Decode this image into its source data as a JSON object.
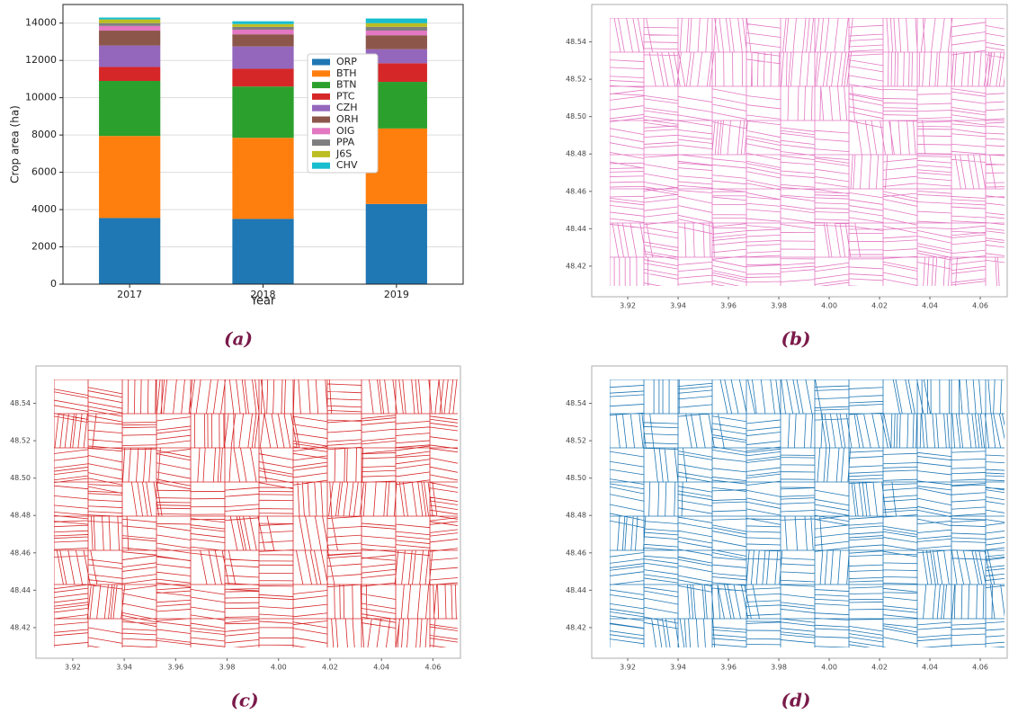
{
  "chart_data": {
    "type": "bar",
    "stacked": true,
    "caption": "(a)",
    "ylabel": "Crop area (ha)",
    "xlabel": "Year",
    "categories": [
      "2017",
      "2018",
      "2019"
    ],
    "series": [
      {
        "name": "ORP",
        "color": "#1f77b4",
        "values": [
          3550,
          3500,
          4300
        ]
      },
      {
        "name": "BTH",
        "color": "#ff7f0e",
        "values": [
          4400,
          4350,
          4050
        ]
      },
      {
        "name": "BTN",
        "color": "#2ca02c",
        "values": [
          2950,
          2750,
          2500
        ]
      },
      {
        "name": "PTC",
        "color": "#d62728",
        "values": [
          750,
          950,
          1000
        ]
      },
      {
        "name": "CZH",
        "color": "#9467bd",
        "values": [
          1150,
          1200,
          750
        ]
      },
      {
        "name": "ORH",
        "color": "#8c564b",
        "values": [
          800,
          650,
          750
        ]
      },
      {
        "name": "OIG",
        "color": "#e377c2",
        "values": [
          250,
          250,
          250
        ]
      },
      {
        "name": "PPA",
        "color": "#7f7f7f",
        "values": [
          150,
          150,
          200
        ]
      },
      {
        "name": "J6S",
        "color": "#bcbd22",
        "values": [
          200,
          150,
          200
        ]
      },
      {
        "name": "CHV",
        "color": "#17becf",
        "values": [
          100,
          150,
          250
        ]
      }
    ],
    "ylim": [
      0,
      15000
    ],
    "yticks": [
      0,
      2000,
      4000,
      6000,
      8000,
      10000,
      12000,
      14000
    ],
    "grid": true,
    "legend": "center right"
  },
  "maps": [
    {
      "caption": "(b)",
      "color": "#e377c2",
      "xlim": [
        3.9057,
        4.0707
      ],
      "ylim": [
        48.4036,
        48.56
      ],
      "xticks": [
        3.92,
        3.94,
        3.96,
        3.98,
        {
          "value": 4,
          "label": "4.00"
        },
        4.02,
        4.04,
        4.06
      ],
      "yticks": [
        48.42,
        48.44,
        48.46,
        48.48,
        {
          "value": 48.5,
          "label": "48.50"
        },
        48.52,
        48.54
      ]
    },
    {
      "caption": "(c)",
      "color": "#d62728",
      "xlim": [
        3.9057,
        4.0707
      ],
      "ylim": [
        48.4036,
        48.56
      ],
      "xticks": [
        3.92,
        3.94,
        3.96,
        3.98,
        {
          "value": 4,
          "label": "4.00"
        },
        4.02,
        4.04,
        4.06
      ],
      "yticks": [
        48.42,
        48.44,
        48.46,
        48.48,
        {
          "value": 48.5,
          "label": "48.50"
        },
        48.52,
        48.54
      ]
    },
    {
      "caption": "(d)",
      "color": "#1f77b4",
      "xlim": [
        3.9057,
        4.0707
      ],
      "ylim": [
        48.4036,
        48.56
      ],
      "xticks": [
        3.92,
        3.94,
        3.96,
        3.98,
        {
          "value": 4,
          "label": "4.00"
        },
        4.02,
        4.04,
        4.06
      ],
      "yticks": [
        48.42,
        48.44,
        48.46,
        48.48,
        {
          "value": 48.5,
          "label": "48.50"
        },
        48.52,
        48.54
      ]
    }
  ]
}
